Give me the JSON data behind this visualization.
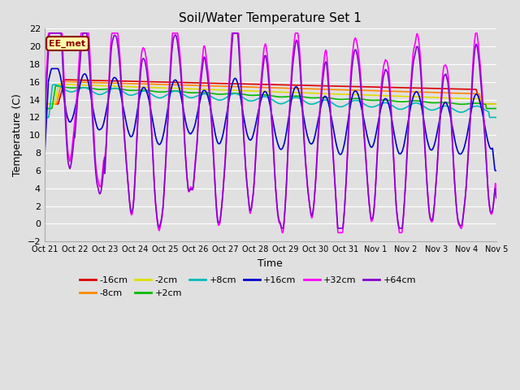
{
  "title": "Soil/Water Temperature Set 1",
  "xlabel": "Time",
  "ylabel": "Temperature (C)",
  "ylim": [
    -2,
    22
  ],
  "yticks": [
    -2,
    0,
    2,
    4,
    6,
    8,
    10,
    12,
    14,
    16,
    18,
    20,
    22
  ],
  "bg_color": "#e0e0e0",
  "plot_bg_color": "#e0e0e0",
  "grid_color": "#ffffff",
  "annotation_text": "EE_met",
  "annotation_bg": "#ffffaa",
  "annotation_border": "#8b0000",
  "series": {
    "-16cm": {
      "color": "#dd0000",
      "lw": 1.2
    },
    "-8cm": {
      "color": "#ff8800",
      "lw": 1.2
    },
    "-2cm": {
      "color": "#dddd00",
      "lw": 1.2
    },
    "+2cm": {
      "color": "#00bb00",
      "lw": 1.2
    },
    "+8cm": {
      "color": "#00bbbb",
      "lw": 1.2
    },
    "+16cm": {
      "color": "#0000cc",
      "lw": 1.2
    },
    "+32cm": {
      "color": "#ff00ff",
      "lw": 1.2
    },
    "+64cm": {
      "color": "#8800cc",
      "lw": 1.2
    }
  },
  "xtick_labels": [
    "Oct 21",
    "Oct 22",
    "Oct 23",
    "Oct 24",
    "Oct 25",
    "Oct 26",
    "Oct 27",
    "Oct 28",
    "Oct 29",
    "Oct 30",
    "Oct 31",
    "Nov 1",
    "Nov 2",
    "Nov 3",
    "Nov 4",
    "Nov 5"
  ]
}
